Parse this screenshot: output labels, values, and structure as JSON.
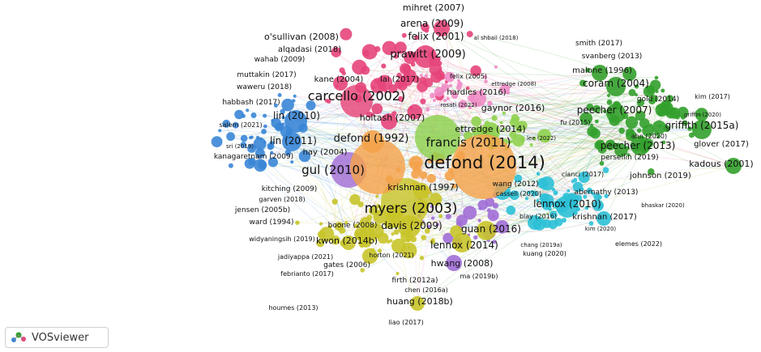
{
  "app": {
    "name": "VOSviewer"
  },
  "colors": {
    "red": "#e6457a",
    "green": "#33a02c",
    "blue": "#3a86d6",
    "yellow": "#c8c42a",
    "orange": "#f4a24a",
    "purple": "#a16ed6",
    "cyan": "#2cc0d6",
    "lime": "#8fd14f",
    "pink": "#f08cc6"
  },
  "labels": [
    {
      "text": "mihret (2007)",
      "c": "red"
    },
    {
      "text": "arena (2009)",
      "c": "red"
    },
    {
      "text": "felix (2001)",
      "c": "red"
    },
    {
      "text": "al shbail (2018)",
      "c": "red"
    },
    {
      "text": "o'sullivan (2008)",
      "c": "red"
    },
    {
      "text": "alqadasi (2018)",
      "c": "red"
    },
    {
      "text": "wahab (2009)",
      "c": "red"
    },
    {
      "text": "prawitt (2009)",
      "c": "red"
    },
    {
      "text": "muttakin (2017)",
      "c": "blue"
    },
    {
      "text": "waweru (2018)",
      "c": "blue"
    },
    {
      "text": "kane (2004)",
      "c": "red"
    },
    {
      "text": "lai (2017)",
      "c": "red"
    },
    {
      "text": "felix (2005)",
      "c": "red"
    },
    {
      "text": "ettredge (2008)",
      "c": "red"
    },
    {
      "text": "habbash (2017)",
      "c": "blue"
    },
    {
      "text": "carcello (2002)",
      "c": "red"
    },
    {
      "text": "hardies (2016)",
      "c": "red"
    },
    {
      "text": "rosati (2022)",
      "c": "red"
    },
    {
      "text": "gaynor (2016)",
      "c": "red"
    },
    {
      "text": "lin (2010)",
      "c": "blue"
    },
    {
      "text": "hoitash (2007)",
      "c": "red"
    },
    {
      "text": "salem (2021)",
      "c": "blue"
    },
    {
      "text": "ettredge (2014)",
      "c": "lime"
    },
    {
      "text": "defond (1992)",
      "c": "orange"
    },
    {
      "text": "sri (2019)",
      "c": "blue"
    },
    {
      "text": "lin (2011)",
      "c": "blue"
    },
    {
      "text": "francis (2011)",
      "c": "lime"
    },
    {
      "text": "lee (2022)",
      "c": "lime"
    },
    {
      "text": "hay (2004)",
      "c": "orange"
    },
    {
      "text": "kanagaretnam (2009)",
      "c": "blue"
    },
    {
      "text": "defond (2014)",
      "c": "orange"
    },
    {
      "text": "gul (2010)",
      "c": "purple"
    },
    {
      "text": "kitching (2009)",
      "c": "yellow"
    },
    {
      "text": "krishnan (1997)",
      "c": "yellow"
    },
    {
      "text": "wang (2012)",
      "c": "cyan"
    },
    {
      "text": "garven (2018)",
      "c": "yellow"
    },
    {
      "text": "cassell (2020)",
      "c": "cyan"
    },
    {
      "text": "jensen (2005b)",
      "c": "yellow"
    },
    {
      "text": "myers (2003)",
      "c": "yellow"
    },
    {
      "text": "lennox (2010)",
      "c": "cyan"
    },
    {
      "text": "ward (1994)",
      "c": "yellow"
    },
    {
      "text": "boone (2008)",
      "c": "yellow"
    },
    {
      "text": "davis (2009)",
      "c": "yellow"
    },
    {
      "text": "blay (2016)",
      "c": "cyan"
    },
    {
      "text": "guan (2016)",
      "c": "yellow"
    },
    {
      "text": "widyaningsih (2019)",
      "c": "yellow"
    },
    {
      "text": "kwon (2014b)",
      "c": "yellow"
    },
    {
      "text": "lennox (2014)",
      "c": "yellow"
    },
    {
      "text": "chang (2019a)",
      "c": "cyan"
    },
    {
      "text": "jadiyappa (2021)",
      "c": "yellow"
    },
    {
      "text": "horton (2021)",
      "c": "yellow"
    },
    {
      "text": "kuang (2020)",
      "c": "cyan"
    },
    {
      "text": "gates (2006)",
      "c": "yellow"
    },
    {
      "text": "hwang (2008)",
      "c": "purple"
    },
    {
      "text": "febrianto (2017)",
      "c": "yellow"
    },
    {
      "text": "firth (2012a)",
      "c": "yellow"
    },
    {
      "text": "ma (2019b)",
      "c": "purple"
    },
    {
      "text": "chen (2016a)",
      "c": "yellow"
    },
    {
      "text": "huang (2018b)",
      "c": "yellow"
    },
    {
      "text": "houmes (2013)",
      "c": "yellow"
    },
    {
      "text": "liao (2017)",
      "c": "yellow"
    },
    {
      "text": "smith (2017)",
      "c": "green"
    },
    {
      "text": "svanberg (2013)",
      "c": "green"
    },
    {
      "text": "malone (1996)",
      "c": "green"
    },
    {
      "text": "coram (2004)",
      "c": "green"
    },
    {
      "text": "gold (2014)",
      "c": "green"
    },
    {
      "text": "kim (2017)",
      "c": "green"
    },
    {
      "text": "peecher (2007)",
      "c": "green"
    },
    {
      "text": "griffin (2020)",
      "c": "green"
    },
    {
      "text": "fu (2015)",
      "c": "lime"
    },
    {
      "text": "griffith (2015a)",
      "c": "green"
    },
    {
      "text": "ahn (2020)",
      "c": "green"
    },
    {
      "text": "glover (2017)",
      "c": "green"
    },
    {
      "text": "peecher (2013)",
      "c": "green"
    },
    {
      "text": "persellin (2019)",
      "c": "green"
    },
    {
      "text": "kadous (2001)",
      "c": "green"
    },
    {
      "text": "cianci (2017)",
      "c": "green"
    },
    {
      "text": "johnson (2019)",
      "c": "cyan"
    },
    {
      "text": "abernathy (2013)",
      "c": "cyan"
    },
    {
      "text": "bhaskar (2020)",
      "c": "cyan"
    },
    {
      "text": "krishnan (2017)",
      "c": "cyan"
    },
    {
      "text": "kim (2020)",
      "c": "cyan"
    },
    {
      "text": "elemes (2022)",
      "c": "cyan"
    }
  ]
}
